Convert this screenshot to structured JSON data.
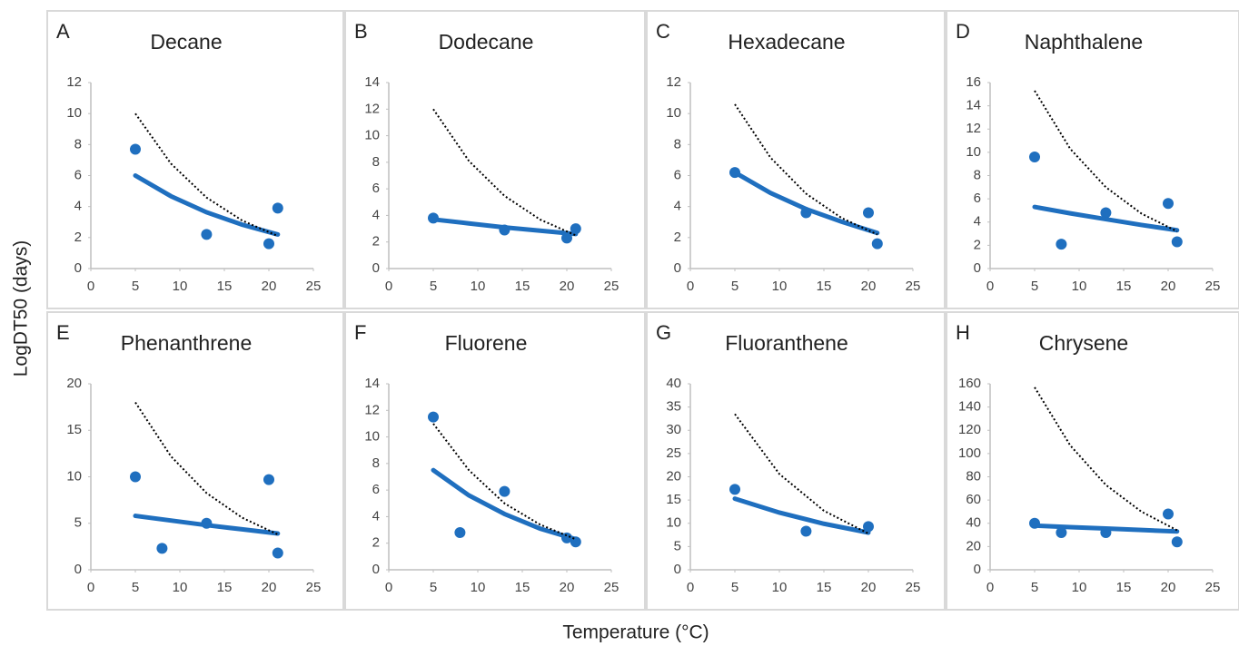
{
  "y_label": "LogDT50 (days)",
  "x_label": "Temperature (°C)",
  "chart_data": [
    {
      "type": "scatter",
      "panel": "A",
      "title": "Decane",
      "xlim": [
        0,
        25
      ],
      "xticks": [
        0,
        5,
        10,
        15,
        20,
        25
      ],
      "ylim": [
        0,
        12
      ],
      "yticks": [
        0,
        2,
        4,
        6,
        8,
        10,
        12
      ],
      "series": [
        {
          "style": "markers",
          "color": "#1f6fbf",
          "x": [
            5,
            13,
            20,
            21
          ],
          "values": [
            7.7,
            2.2,
            1.6,
            3.9
          ]
        },
        {
          "style": "solid",
          "color": "#1f6fbf",
          "x": [
            5,
            9,
            13,
            17,
            21
          ],
          "values": [
            6.0,
            4.67,
            3.63,
            2.83,
            2.2
          ]
        },
        {
          "style": "dotted",
          "color": "#000000",
          "x": [
            5,
            9,
            13,
            17,
            21
          ],
          "values": [
            10,
            6.77,
            4.58,
            3.1,
            2.1
          ]
        }
      ]
    },
    {
      "type": "scatter",
      "panel": "B",
      "title": "Dodecane",
      "xlim": [
        0,
        25
      ],
      "xticks": [
        0,
        5,
        10,
        15,
        20,
        25
      ],
      "ylim": [
        0,
        14
      ],
      "yticks": [
        0,
        2,
        4,
        6,
        8,
        10,
        12,
        14
      ],
      "series": [
        {
          "style": "markers",
          "color": "#1f6fbf",
          "x": [
            5,
            13,
            20,
            21
          ],
          "values": [
            3.8,
            2.9,
            2.3,
            3.0
          ]
        },
        {
          "style": "solid",
          "color": "#1f6fbf",
          "x": [
            5,
            9,
            13,
            17,
            21
          ],
          "values": [
            3.7,
            3.4,
            3.1,
            2.85,
            2.6
          ]
        },
        {
          "style": "dotted",
          "color": "#000000",
          "x": [
            5,
            9,
            13,
            17,
            21
          ],
          "values": [
            12,
            8.1,
            5.47,
            3.69,
            2.5
          ]
        }
      ]
    },
    {
      "type": "scatter",
      "panel": "C",
      "title": "Hexadecane",
      "xlim": [
        0,
        25
      ],
      "xticks": [
        0,
        5,
        10,
        15,
        20,
        25
      ],
      "ylim": [
        0,
        12
      ],
      "yticks": [
        0,
        2,
        4,
        6,
        8,
        10,
        12
      ],
      "series": [
        {
          "style": "markers",
          "color": "#1f6fbf",
          "x": [
            5,
            13,
            20,
            21
          ],
          "values": [
            6.2,
            3.6,
            3.6,
            1.6
          ]
        },
        {
          "style": "solid",
          "color": "#1f6fbf",
          "x": [
            5,
            9,
            13,
            17,
            21
          ],
          "values": [
            6.2,
            4.88,
            3.84,
            3.02,
            2.3
          ]
        },
        {
          "style": "dotted",
          "color": "#000000",
          "x": [
            5,
            9,
            13,
            17,
            21
          ],
          "values": [
            10.6,
            7.16,
            4.83,
            3.26,
            2.2
          ]
        }
      ]
    },
    {
      "type": "scatter",
      "panel": "D",
      "title": "Naphthalene",
      "xlim": [
        0,
        25
      ],
      "xticks": [
        0,
        5,
        10,
        15,
        20,
        25
      ],
      "ylim": [
        0,
        16
      ],
      "yticks": [
        0,
        2,
        4,
        6,
        8,
        10,
        12,
        14,
        16
      ],
      "series": [
        {
          "style": "markers",
          "color": "#1f6fbf",
          "x": [
            5,
            8,
            13,
            20,
            21
          ],
          "values": [
            9.6,
            2.1,
            4.8,
            5.6,
            2.3
          ]
        },
        {
          "style": "solid",
          "color": "#1f6fbf",
          "x": [
            5,
            9,
            13,
            17,
            21
          ],
          "values": [
            5.3,
            4.75,
            4.25,
            3.75,
            3.3
          ]
        },
        {
          "style": "dotted",
          "color": "#000000",
          "x": [
            5,
            9,
            13,
            17,
            21
          ],
          "values": [
            15.3,
            10.3,
            7.0,
            4.73,
            3.2
          ]
        }
      ]
    },
    {
      "type": "scatter",
      "panel": "E",
      "title": "Phenanthrene",
      "xlim": [
        0,
        25
      ],
      "xticks": [
        0,
        5,
        10,
        15,
        20,
        25
      ],
      "ylim": [
        0,
        20
      ],
      "yticks": [
        0,
        5,
        10,
        15,
        20
      ],
      "series": [
        {
          "style": "markers",
          "color": "#1f6fbf",
          "x": [
            5,
            8,
            13,
            20,
            21
          ],
          "values": [
            10,
            2.3,
            5,
            9.7,
            1.8
          ]
        },
        {
          "style": "solid",
          "color": "#1f6fbf",
          "x": [
            5,
            9,
            13,
            17,
            21
          ],
          "values": [
            5.8,
            5.3,
            4.8,
            4.35,
            3.9
          ]
        },
        {
          "style": "dotted",
          "color": "#000000",
          "x": [
            5,
            9,
            13,
            17,
            21
          ],
          "values": [
            18,
            12.2,
            8.25,
            5.6,
            3.8
          ]
        }
      ]
    },
    {
      "type": "scatter",
      "panel": "F",
      "title": "Fluorene",
      "xlim": [
        0,
        25
      ],
      "xticks": [
        0,
        5,
        10,
        15,
        20,
        25
      ],
      "ylim": [
        0,
        14
      ],
      "yticks": [
        0,
        2,
        4,
        6,
        8,
        10,
        12,
        14
      ],
      "series": [
        {
          "style": "markers",
          "color": "#1f6fbf",
          "x": [
            5,
            8,
            13,
            20,
            21
          ],
          "values": [
            11.5,
            2.8,
            5.9,
            2.4,
            2.1
          ]
        },
        {
          "style": "solid",
          "color": "#1f6fbf",
          "x": [
            5,
            9,
            13,
            17,
            21
          ],
          "values": [
            7.5,
            5.6,
            4.2,
            3.1,
            2.3
          ]
        },
        {
          "style": "dotted",
          "color": "#000000",
          "x": [
            5,
            9,
            13,
            17,
            21
          ],
          "values": [
            11,
            7.5,
            5.0,
            3.4,
            2.3
          ]
        }
      ]
    },
    {
      "type": "scatter",
      "panel": "G",
      "title": "Fluoranthene",
      "xlim": [
        0,
        25
      ],
      "xticks": [
        0,
        5,
        10,
        15,
        20,
        25
      ],
      "ylim": [
        0,
        40
      ],
      "yticks": [
        0,
        5,
        10,
        15,
        20,
        25,
        30,
        35,
        40
      ],
      "series": [
        {
          "style": "markers",
          "color": "#1f6fbf",
          "x": [
            5,
            13,
            20
          ],
          "values": [
            17.3,
            8.3,
            9.3
          ]
        },
        {
          "style": "solid",
          "color": "#1f6fbf",
          "x": [
            5,
            10,
            15,
            20
          ],
          "values": [
            15.3,
            12.3,
            9.9,
            8.0
          ]
        },
        {
          "style": "dotted",
          "color": "#000000",
          "x": [
            5,
            10,
            15,
            20
          ],
          "values": [
            33.5,
            20.6,
            12.7,
            7.8
          ]
        }
      ]
    },
    {
      "type": "scatter",
      "panel": "H",
      "title": "Chrysene",
      "xlim": [
        0,
        25
      ],
      "xticks": [
        0,
        5,
        10,
        15,
        20,
        25
      ],
      "ylim": [
        0,
        160
      ],
      "yticks": [
        0,
        20,
        40,
        60,
        80,
        100,
        120,
        140,
        160
      ],
      "series": [
        {
          "style": "markers",
          "color": "#1f6fbf",
          "x": [
            5,
            8,
            13,
            20,
            21
          ],
          "values": [
            40,
            32,
            32,
            48,
            24
          ]
        },
        {
          "style": "solid",
          "color": "#1f6fbf",
          "x": [
            5,
            9,
            13,
            17,
            21
          ],
          "values": [
            38,
            36.7,
            35.5,
            34.2,
            33
          ]
        },
        {
          "style": "dotted",
          "color": "#000000",
          "x": [
            5,
            9,
            13,
            17,
            21
          ],
          "values": [
            157,
            107,
            73,
            50,
            34
          ]
        }
      ]
    }
  ]
}
